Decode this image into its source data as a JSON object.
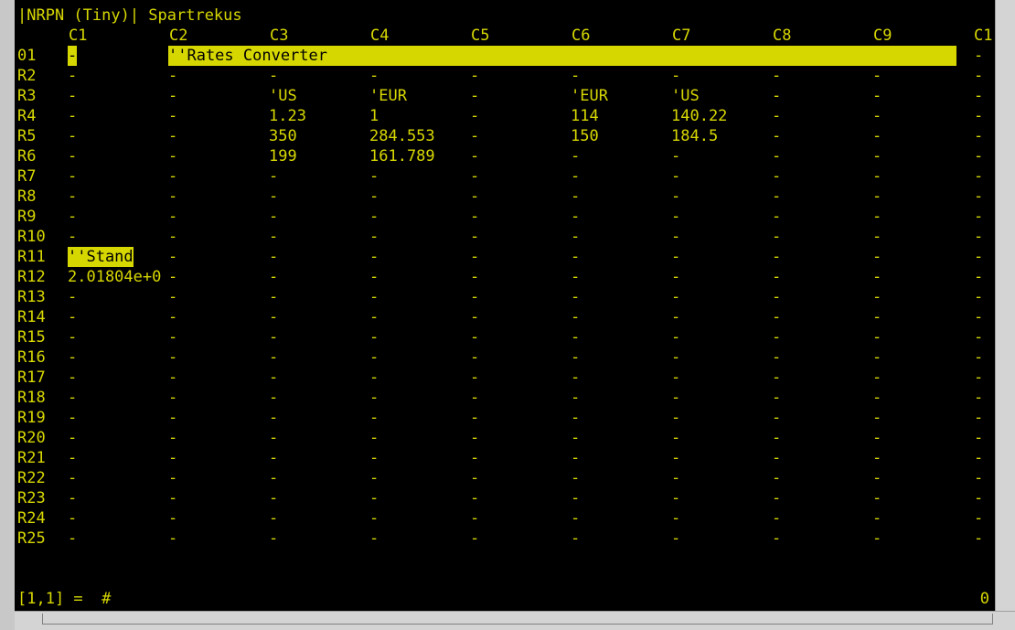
{
  "screen": {
    "title": "|NRPN (Tiny)| Spartrekus",
    "status_formula": "[1,1] =  #",
    "status_right": "0"
  },
  "sheet": {
    "col_headers": [
      "C1",
      "C2",
      "C3",
      "C4",
      "C5",
      "C6",
      "C7",
      "C8",
      "C9",
      "C1"
    ],
    "row_labels": [
      "01",
      "R2",
      "R3",
      "R4",
      "R5",
      "R6",
      "R7",
      "R8",
      "R9",
      "R10",
      "R11",
      "R12",
      "R13",
      "R14",
      "R15",
      "R16",
      "R17",
      "R18",
      "R19",
      "R20",
      "R21",
      "R22",
      "R23",
      "R24",
      "R25"
    ],
    "empty_marker": "-",
    "cells": {
      "0": {
        "0": "-",
        "1": "''Rates Converter"
      },
      "2": {
        "2": "'US",
        "3": "'EUR",
        "5": "'EUR",
        "6": "'US"
      },
      "3": {
        "2": "1.23",
        "3": "1",
        "5": "114",
        "6": "140.22"
      },
      "4": {
        "2": "350",
        "3": "284.553",
        "5": "150",
        "6": "184.5"
      },
      "5": {
        "2": "199",
        "3": "161.789"
      },
      "10": {
        "0": "''Stand"
      },
      "11": {
        "0": "2.01804e+0"
      }
    },
    "highlights": [
      {
        "row": 0,
        "col": 0
      },
      {
        "row": 0,
        "col": 1,
        "span": 8
      },
      {
        "row": 10,
        "col": 0
      }
    ],
    "colors": {
      "text": "#d7d700",
      "background": "#000000",
      "highlight_text": "#000000"
    }
  }
}
